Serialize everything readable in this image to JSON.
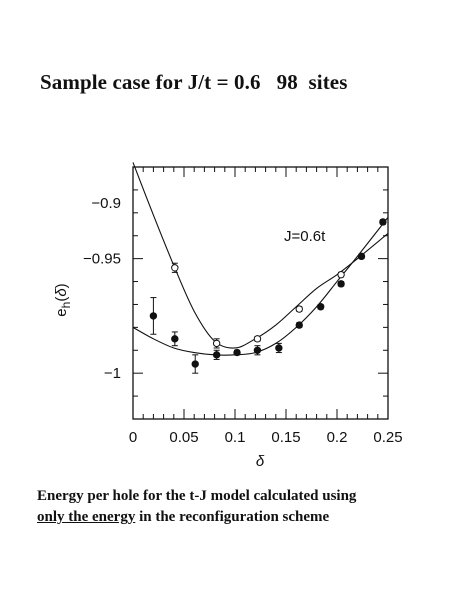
{
  "title": "Sample case for J/t = 0.6   98  sites",
  "caption": {
    "line1": "Energy per hole for the t-J model calculated using",
    "line2_underlined": "only the energy",
    "line2_rest": " in the reconfiguration  scheme"
  },
  "chart_data": {
    "type": "scatter",
    "title": "",
    "xlabel": "δ",
    "ylabel": "e_h(δ)",
    "xlim": [
      0,
      0.25
    ],
    "ylim": [
      -1.02,
      -0.91
    ],
    "x_ticks": [
      0,
      0.05,
      0.1,
      0.15,
      0.2,
      0.25
    ],
    "x_tick_labels": [
      "0",
      "0.05",
      "0.1",
      "0.15",
      "0.2",
      "0.25"
    ],
    "y_ticks": [
      -0.9,
      -0.95,
      -1.0
    ],
    "y_tick_labels": [
      "−0.9",
      "−0.95",
      "−1"
    ],
    "annotation": "J=0.6t",
    "series": [
      {
        "marker": "open-circle",
        "x": [
          0.041,
          0.082,
          0.122,
          0.163,
          0.204
        ],
        "y": [
          -0.954,
          -0.987,
          -0.985,
          -0.972,
          -0.957
        ],
        "err": [
          0.002,
          0.002,
          0.001,
          0.001,
          0.001
        ]
      },
      {
        "marker": "filled-circle",
        "x": [
          0.02,
          0.041,
          0.061,
          0.082,
          0.102,
          0.122,
          0.143,
          0.163,
          0.184,
          0.204,
          0.224,
          0.245
        ],
        "y": [
          -0.975,
          -0.985,
          -0.996,
          -0.992,
          -0.991,
          -0.99,
          -0.989,
          -0.979,
          -0.971,
          -0.961,
          -0.949,
          -0.934
        ],
        "err": [
          0.008,
          0.003,
          0.004,
          0.002,
          0.001,
          0.002,
          0.002,
          0.001,
          0.001,
          0.001,
          0.001,
          0.001
        ]
      }
    ],
    "fit_curves": [
      {
        "style": "solid",
        "x": [
          0.0,
          0.02,
          0.04,
          0.06,
          0.08,
          0.1,
          0.12,
          0.14,
          0.16,
          0.18,
          0.2,
          0.22,
          0.25
        ],
        "y": [
          -0.908,
          -0.931,
          -0.953,
          -0.973,
          -0.986,
          -0.989,
          -0.985,
          -0.979,
          -0.971,
          -0.963,
          -0.957,
          -0.95,
          -0.939
        ]
      },
      {
        "style": "solid",
        "x": [
          0.0,
          0.02,
          0.04,
          0.06,
          0.08,
          0.1,
          0.12,
          0.14,
          0.16,
          0.18,
          0.2,
          0.22,
          0.25
        ],
        "y": [
          -0.98,
          -0.985,
          -0.989,
          -0.991,
          -0.992,
          -0.992,
          -0.991,
          -0.987,
          -0.98,
          -0.971,
          -0.96,
          -0.949,
          -0.932
        ]
      }
    ]
  }
}
